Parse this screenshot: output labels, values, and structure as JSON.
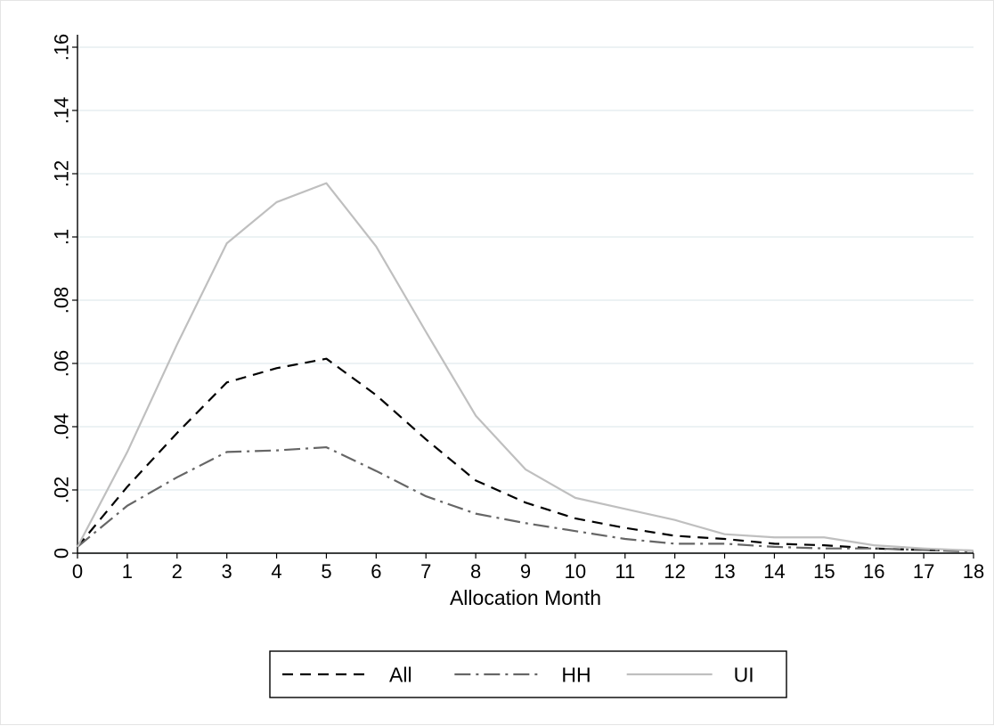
{
  "chart_data": {
    "type": "line",
    "title": "",
    "xlabel": "Allocation Month",
    "ylabel": "",
    "x": [
      0,
      1,
      2,
      3,
      4,
      5,
      6,
      7,
      8,
      9,
      10,
      11,
      12,
      13,
      14,
      15,
      16,
      17,
      18
    ],
    "x_ticks": [
      "0",
      "1",
      "2",
      "3",
      "4",
      "5",
      "6",
      "7",
      "8",
      "9",
      "10",
      "11",
      "12",
      "13",
      "14",
      "15",
      "16",
      "17",
      "18"
    ],
    "xlim": [
      0,
      18
    ],
    "ylim": [
      0,
      0.16
    ],
    "y_ticks": [
      0,
      0.02,
      0.04,
      0.06,
      0.08,
      0.1,
      0.12,
      0.14,
      0.16
    ],
    "y_tick_labels": [
      "0",
      ".02",
      ".04",
      ".06",
      ".08",
      ".1",
      ".12",
      ".14",
      ".16"
    ],
    "grid": true,
    "legend_position": "bottom",
    "series": [
      {
        "name": "All",
        "color": "#000000",
        "style": "dash",
        "values": [
          0.002,
          0.021,
          0.038,
          0.054,
          0.0585,
          0.0615,
          0.05,
          0.036,
          0.023,
          0.016,
          0.011,
          0.008,
          0.0055,
          0.0045,
          0.003,
          0.0025,
          0.0015,
          0.001,
          0.0008
        ]
      },
      {
        "name": "HH",
        "color": "#666666",
        "style": "dash-dot",
        "values": [
          0.002,
          0.015,
          0.024,
          0.032,
          0.0325,
          0.0335,
          0.026,
          0.018,
          0.0125,
          0.0095,
          0.007,
          0.0045,
          0.003,
          0.003,
          0.002,
          0.0015,
          0.0015,
          0.001,
          0.0005
        ]
      },
      {
        "name": "UI",
        "color": "#bfbfbf",
        "style": "solid",
        "values": [
          0.002,
          0.032,
          0.066,
          0.098,
          0.111,
          0.117,
          0.097,
          0.07,
          0.0435,
          0.0265,
          0.0175,
          0.014,
          0.0105,
          0.006,
          0.005,
          0.005,
          0.0025,
          0.0015,
          0.0008
        ]
      }
    ]
  }
}
